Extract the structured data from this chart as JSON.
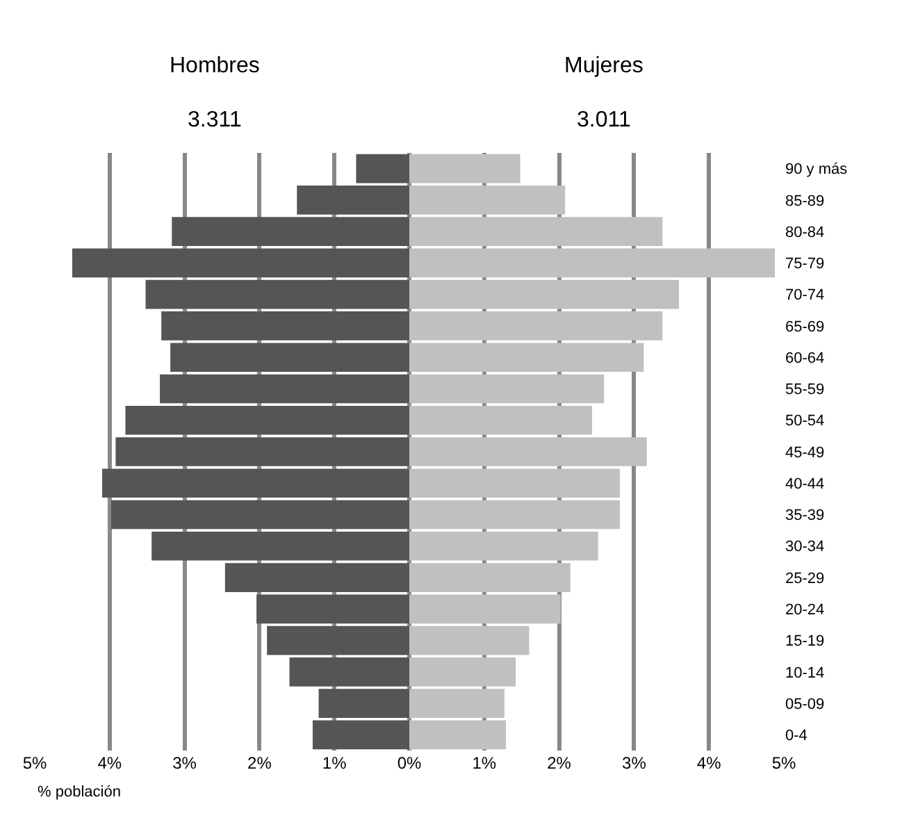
{
  "chart_data": {
    "type": "bar",
    "orientation": "horizontal",
    "stacked": true,
    "categories": [
      "90 y más",
      "85-89",
      "80-84",
      "75-79",
      "70-74",
      "65-69",
      "60-64",
      "55-59",
      "50-54",
      "45-49",
      "40-44",
      "35-39",
      "30-34",
      "25-29",
      "20-24",
      "15-19",
      "10-14",
      "05-09",
      "0-4"
    ],
    "series": [
      {
        "color": "#555555",
        "values": [
          -0.71,
          -1.5,
          -3.17,
          -4.5,
          -3.52,
          -3.31,
          -3.19,
          -3.33,
          -3.79,
          -3.92,
          -4.1,
          -3.98,
          -3.44,
          -2.46,
          -2.04,
          -1.9,
          -1.6,
          -1.21,
          -1.29
        ]
      },
      {
        "color": "#c0c0c0",
        "values": [
          1.48,
          2.08,
          3.38,
          4.88,
          3.6,
          3.38,
          3.13,
          2.6,
          2.44,
          3.17,
          2.81,
          2.81,
          2.52,
          2.15,
          2.02,
          1.6,
          1.42,
          1.27,
          1.29
        ]
      }
    ],
    "xlim": [
      -5,
      5
    ],
    "xticks": [
      {
        "value": -5,
        "label": "5%"
      },
      {
        "value": -4,
        "label": "4%"
      },
      {
        "value": -3,
        "label": "3%"
      },
      {
        "value": -2,
        "label": "2%"
      },
      {
        "value": -1,
        "label": "1%"
      },
      {
        "value": 0,
        "label": "0%"
      },
      {
        "value": 1,
        "label": "1%"
      },
      {
        "value": 2,
        "label": "2%"
      },
      {
        "value": 3,
        "label": "3%"
      },
      {
        "value": 4,
        "label": "4%"
      },
      {
        "value": 5,
        "label": "5%"
      }
    ],
    "xlabel": "% población",
    "grid": "x",
    "annotations": [
      "Hombres",
      "3.311",
      "Mujeres",
      "3.011"
    ]
  }
}
